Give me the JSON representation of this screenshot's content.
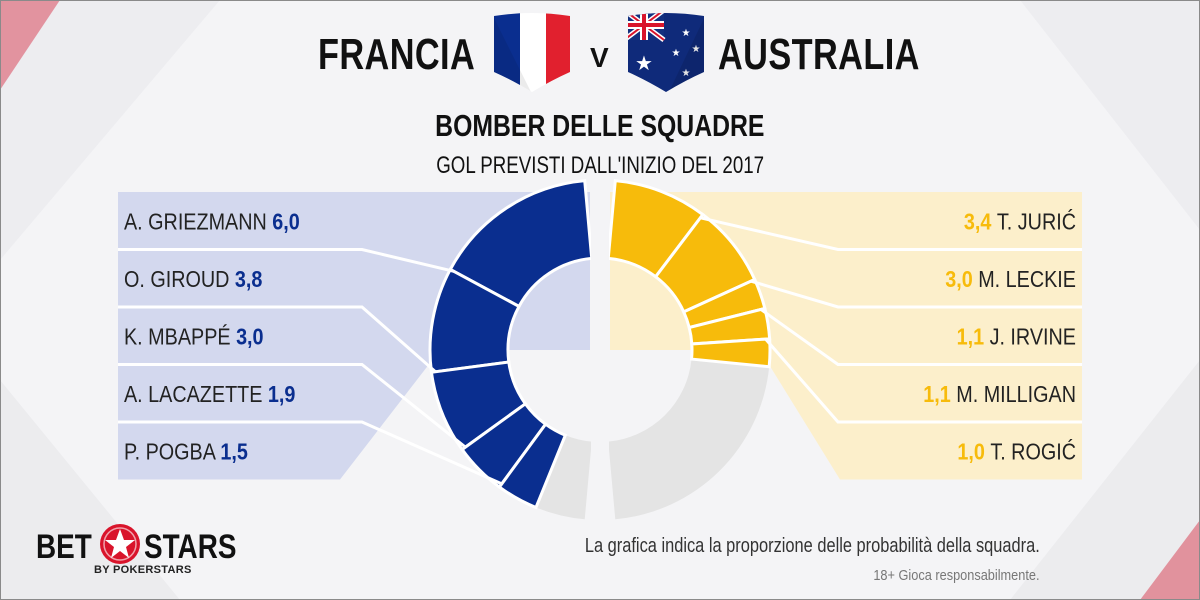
{
  "header": {
    "team_left": "FRANCIA",
    "vs": "V",
    "team_right": "AUSTRALIA",
    "subtitle": "BOMBER DELLE SQUADRE",
    "caption": "GOL PREVISTI DALL'INIZIO  DEL 2017"
  },
  "footer": {
    "note": "La grafica indica la proporzione delle probabilità della squadra.",
    "disclaimer": "18+ Gioca responsabilmente."
  },
  "logo": {
    "bet": "BET",
    "stars": "STARS",
    "tagline": "BY POKERSTARS"
  },
  "colors": {
    "france": "#0a2e8f",
    "france_panel": "#d3d8ee",
    "australia": "#f7bb0b",
    "australia_panel": "#fcefcb",
    "remainder": "#e4e4e4",
    "accent": "#d9142b"
  },
  "chart_data": [
    {
      "type": "pie",
      "team": "FRANCIA",
      "categories": [
        "A. GRIEZMANN",
        "O. GIROUD",
        "K. MBAPPÉ",
        "A. LACAZETTE",
        "P. POGBA"
      ],
      "values": [
        6.0,
        3.8,
        3.0,
        1.9,
        1.5
      ],
      "labels": [
        "6,0",
        "3,8",
        "3,0",
        "1,9",
        "1,5"
      ]
    },
    {
      "type": "pie",
      "team": "AUSTRALIA",
      "categories": [
        "T. JURIĆ",
        "M. LECKIE",
        "J. IRVINE",
        "M. MILLIGAN",
        "T. ROGIĆ"
      ],
      "values": [
        3.4,
        3.0,
        1.1,
        1.1,
        1.0
      ],
      "labels": [
        "3,4",
        "3,0",
        "1,1",
        "1,1",
        "1,0"
      ]
    }
  ]
}
